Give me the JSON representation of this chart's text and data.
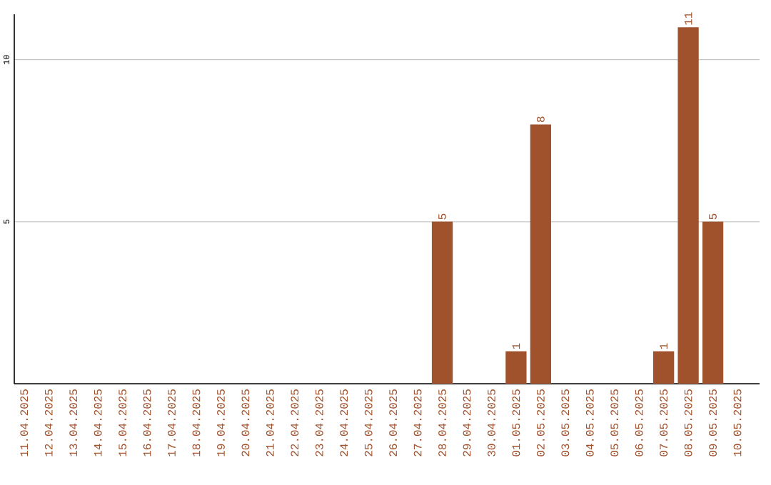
{
  "chart_data": {
    "type": "bar",
    "categories": [
      "11.04.2025",
      "12.04.2025",
      "13.04.2025",
      "14.04.2025",
      "15.04.2025",
      "16.04.2025",
      "17.04.2025",
      "18.04.2025",
      "19.04.2025",
      "20.04.2025",
      "21.04.2025",
      "22.04.2025",
      "23.04.2025",
      "24.04.2025",
      "25.04.2025",
      "26.04.2025",
      "27.04.2025",
      "28.04.2025",
      "29.04.2025",
      "30.04.2025",
      "01.05.2025",
      "02.05.2025",
      "03.05.2025",
      "04.05.2025",
      "05.05.2025",
      "06.05.2025",
      "07.05.2025",
      "08.05.2025",
      "09.05.2025",
      "10.05.2025"
    ],
    "values": [
      0,
      0,
      0,
      0,
      0,
      0,
      0,
      0,
      0,
      0,
      0,
      0,
      0,
      0,
      0,
      0,
      0,
      5,
      0,
      0,
      1,
      8,
      0,
      0,
      0,
      0,
      1,
      11,
      5,
      0
    ],
    "value_labels": [
      null,
      null,
      null,
      null,
      null,
      null,
      null,
      null,
      null,
      null,
      null,
      null,
      null,
      null,
      null,
      null,
      null,
      "5",
      null,
      null,
      "1",
      "8",
      null,
      null,
      null,
      null,
      "1",
      "11",
      "5",
      null
    ],
    "color": "#a0522d",
    "ylim": [
      0,
      11.4
    ],
    "yticks": [
      5,
      10
    ],
    "grid": "y"
  }
}
